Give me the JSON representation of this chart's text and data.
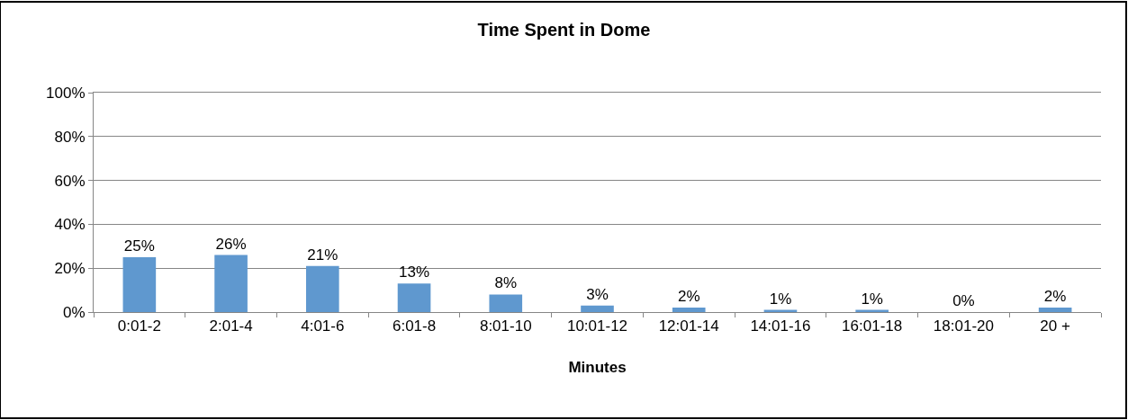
{
  "chart_data": {
    "type": "bar",
    "title": "Time Spent in Dome",
    "xlabel": "Minutes",
    "categories": [
      "0:01-2",
      "2:01-4",
      "4:01-6",
      "6:01-8",
      "8:01-10",
      "10:01-12",
      "12:01-14",
      "14:01-16",
      "16:01-18",
      "18:01-20",
      "20 +"
    ],
    "values": [
      25,
      26,
      21,
      13,
      8,
      3,
      2,
      1,
      1,
      0,
      2
    ],
    "value_labels": [
      "25%",
      "26%",
      "21%",
      "13%",
      "8%",
      "3%",
      "2%",
      "1%",
      "1%",
      "0%",
      "2%"
    ],
    "color": "#5f98cf",
    "ylim": [
      0,
      100
    ],
    "yticks": [
      {
        "value": 0,
        "label": "0%"
      },
      {
        "value": 20,
        "label": "20%"
      },
      {
        "value": 40,
        "label": "40%"
      },
      {
        "value": 60,
        "label": "60%"
      },
      {
        "value": 80,
        "label": "80%"
      },
      {
        "value": 100,
        "label": "100%"
      }
    ],
    "grid": "y"
  }
}
